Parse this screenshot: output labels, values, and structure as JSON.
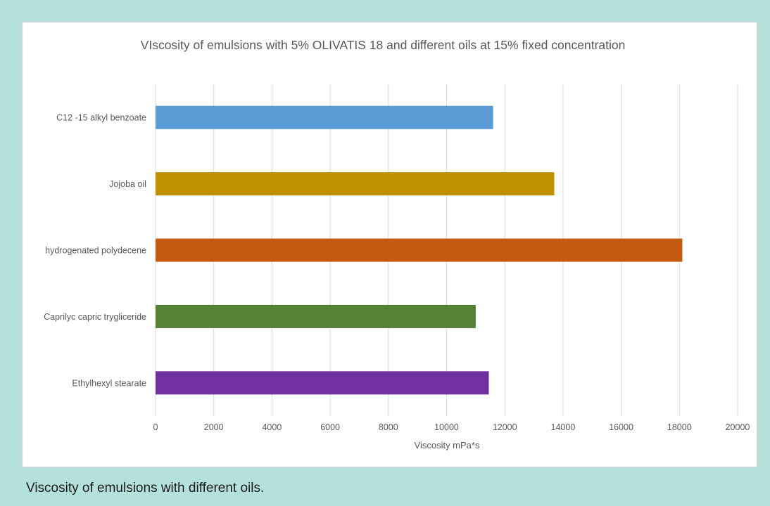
{
  "caption": "Viscosity of emulsions with different oils.",
  "chart_data": {
    "type": "bar",
    "orientation": "horizontal",
    "title": "VIscosity of emulsions with 5% OLIVATIS 18 and different oils at 15% fixed concentration",
    "xlabel": "Viscosity mPa*s",
    "ylabel": "",
    "xlim": [
      0,
      20000
    ],
    "xticks": [
      0,
      2000,
      4000,
      6000,
      8000,
      10000,
      12000,
      14000,
      16000,
      18000,
      20000
    ],
    "grid": true,
    "legend": false,
    "categories": [
      "C12 -15 alkyl benzoate",
      "Jojoba oil",
      "hydrogenated polydecene",
      "Caprilyc capric trygliceride",
      "Ethylhexyl stearate"
    ],
    "values": [
      11600,
      13700,
      18100,
      11000,
      11450
    ],
    "colors": [
      "#5b9bd5",
      "#bf9000",
      "#c55a11",
      "#548235",
      "#7030a0"
    ]
  }
}
